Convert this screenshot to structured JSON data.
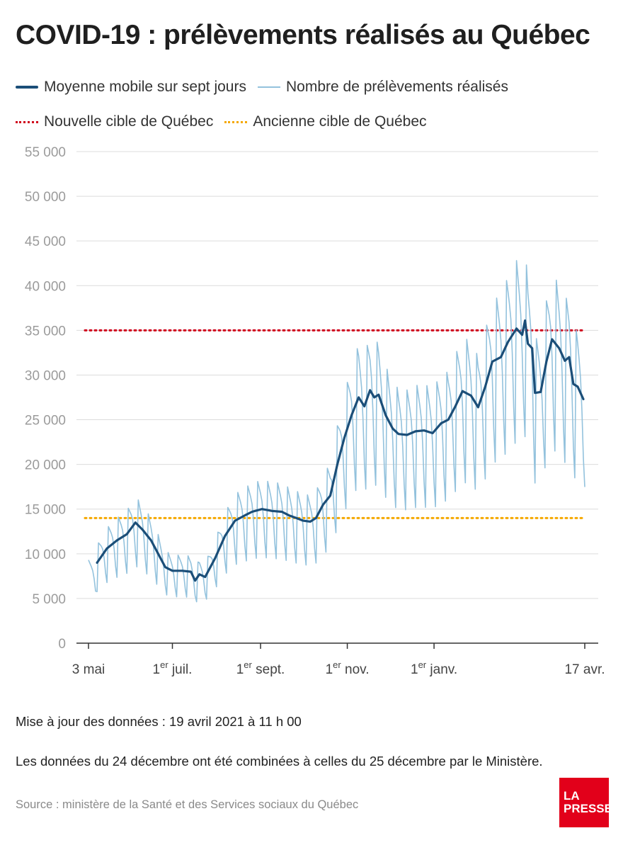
{
  "title": "COVID-19 : prélèvements réalisés au Québec",
  "legend": {
    "avg_label": "Moyenne mobile sur sept jours",
    "raw_label": "Nombre de prélèvements réalisés",
    "new_target_label": "Nouvelle cible de Québec",
    "old_target_label": "Ancienne cible de Québec"
  },
  "colors": {
    "avg": "#1b4e78",
    "raw": "#93c2dd",
    "new_target": "#d0021b",
    "old_target": "#f5a800",
    "grid": "#dcdcdc",
    "axis_text": "#9b9b9b"
  },
  "footnotes": {
    "updated": "Mise à jour des données : 19 avril 2021 à 11 h 00",
    "note": "Les données du 24 décembre ont été combinées à celles du 25 décembre par le Ministère.",
    "source": "Source : ministère de la Santé et des Services sociaux du Québec"
  },
  "logo": {
    "line1": "LA",
    "line2": "PRESSE"
  },
  "chart_data": {
    "type": "line",
    "x_axis": {
      "ticks": [
        {
          "date": "2020-05-03",
          "main": "3 mai",
          "sup": "",
          "rest": ""
        },
        {
          "date": "2020-07-01",
          "main": "1",
          "sup": "er",
          "rest": " juil."
        },
        {
          "date": "2020-09-01",
          "main": "1",
          "sup": "er",
          "rest": " sept."
        },
        {
          "date": "2020-11-01",
          "main": "1",
          "sup": "er",
          "rest": " nov."
        },
        {
          "date": "2021-01-01",
          "main": "1",
          "sup": "er",
          "rest": " janv."
        },
        {
          "date": "2021-04-17",
          "main": "17 avr.",
          "sup": "",
          "rest": ""
        }
      ]
    },
    "y_axis": {
      "ylim": [
        0,
        55000
      ],
      "ticks": [
        0,
        5000,
        10000,
        15000,
        20000,
        25000,
        30000,
        35000,
        40000,
        45000,
        50000,
        55000
      ],
      "tick_labels": [
        "0",
        "5 000",
        "10 000",
        "15 000",
        "20 000",
        "25 000",
        "30 000",
        "35 000",
        "40 000",
        "45 000",
        "50 000",
        "55 000"
      ]
    },
    "reference_lines": [
      {
        "name": "Nouvelle cible de Québec",
        "value": 35000
      },
      {
        "name": "Ancienne cible de Québec",
        "value": 14000
      }
    ],
    "series": [
      {
        "name": "Moyenne mobile sur sept jours",
        "points": [
          [
            "2020-05-09",
            9000
          ],
          [
            "2020-05-16",
            10600
          ],
          [
            "2020-05-23",
            11500
          ],
          [
            "2020-05-30",
            12200
          ],
          [
            "2020-06-05",
            13500
          ],
          [
            "2020-06-10",
            12700
          ],
          [
            "2020-06-16",
            11500
          ],
          [
            "2020-06-21",
            10000
          ],
          [
            "2020-06-26",
            8500
          ],
          [
            "2020-07-01",
            8100
          ],
          [
            "2020-07-08",
            8100
          ],
          [
            "2020-07-14",
            8000
          ],
          [
            "2020-07-17",
            7000
          ],
          [
            "2020-07-20",
            7700
          ],
          [
            "2020-07-24",
            7400
          ],
          [
            "2020-07-31",
            9500
          ],
          [
            "2020-08-07",
            12000
          ],
          [
            "2020-08-14",
            13700
          ],
          [
            "2020-08-21",
            14300
          ],
          [
            "2020-08-26",
            14700
          ],
          [
            "2020-09-02",
            15000
          ],
          [
            "2020-09-09",
            14800
          ],
          [
            "2020-09-16",
            14700
          ],
          [
            "2020-09-21",
            14300
          ],
          [
            "2020-09-26",
            14000
          ],
          [
            "2020-10-01",
            13700
          ],
          [
            "2020-10-06",
            13600
          ],
          [
            "2020-10-10",
            14000
          ],
          [
            "2020-10-15",
            15500
          ],
          [
            "2020-10-20",
            16500
          ],
          [
            "2020-10-25",
            20000
          ],
          [
            "2020-10-30",
            23000
          ],
          [
            "2020-11-04",
            25500
          ],
          [
            "2020-11-09",
            27500
          ],
          [
            "2020-11-13",
            26500
          ],
          [
            "2020-11-17",
            28300
          ],
          [
            "2020-11-20",
            27500
          ],
          [
            "2020-11-23",
            27800
          ],
          [
            "2020-11-28",
            25500
          ],
          [
            "2020-12-03",
            24000
          ],
          [
            "2020-12-07",
            23400
          ],
          [
            "2020-12-13",
            23300
          ],
          [
            "2020-12-19",
            23700
          ],
          [
            "2020-12-25",
            23800
          ],
          [
            "2020-12-31",
            23500
          ],
          [
            "2021-01-06",
            24600
          ],
          [
            "2021-01-11",
            25000
          ],
          [
            "2021-01-16",
            26500
          ],
          [
            "2021-01-21",
            28200
          ],
          [
            "2021-01-27",
            27700
          ],
          [
            "2021-02-01",
            26400
          ],
          [
            "2021-02-06",
            28700
          ],
          [
            "2021-02-11",
            31500
          ],
          [
            "2021-02-17",
            32000
          ],
          [
            "2021-02-22",
            33700
          ],
          [
            "2021-02-28",
            35200
          ],
          [
            "2021-03-04",
            34500
          ],
          [
            "2021-03-06",
            36100
          ],
          [
            "2021-03-08",
            33500
          ],
          [
            "2021-03-11",
            33000
          ],
          [
            "2021-03-13",
            28000
          ],
          [
            "2021-03-17",
            28100
          ],
          [
            "2021-03-21",
            31500
          ],
          [
            "2021-03-25",
            34000
          ],
          [
            "2021-03-30",
            33000
          ],
          [
            "2021-04-03",
            31600
          ],
          [
            "2021-04-06",
            32000
          ],
          [
            "2021-04-09",
            29000
          ],
          [
            "2021-04-12",
            28700
          ],
          [
            "2021-04-16",
            27300
          ]
        ]
      },
      {
        "name": "Nombre de prélèvements réalisés",
        "points": []
      }
    ]
  }
}
